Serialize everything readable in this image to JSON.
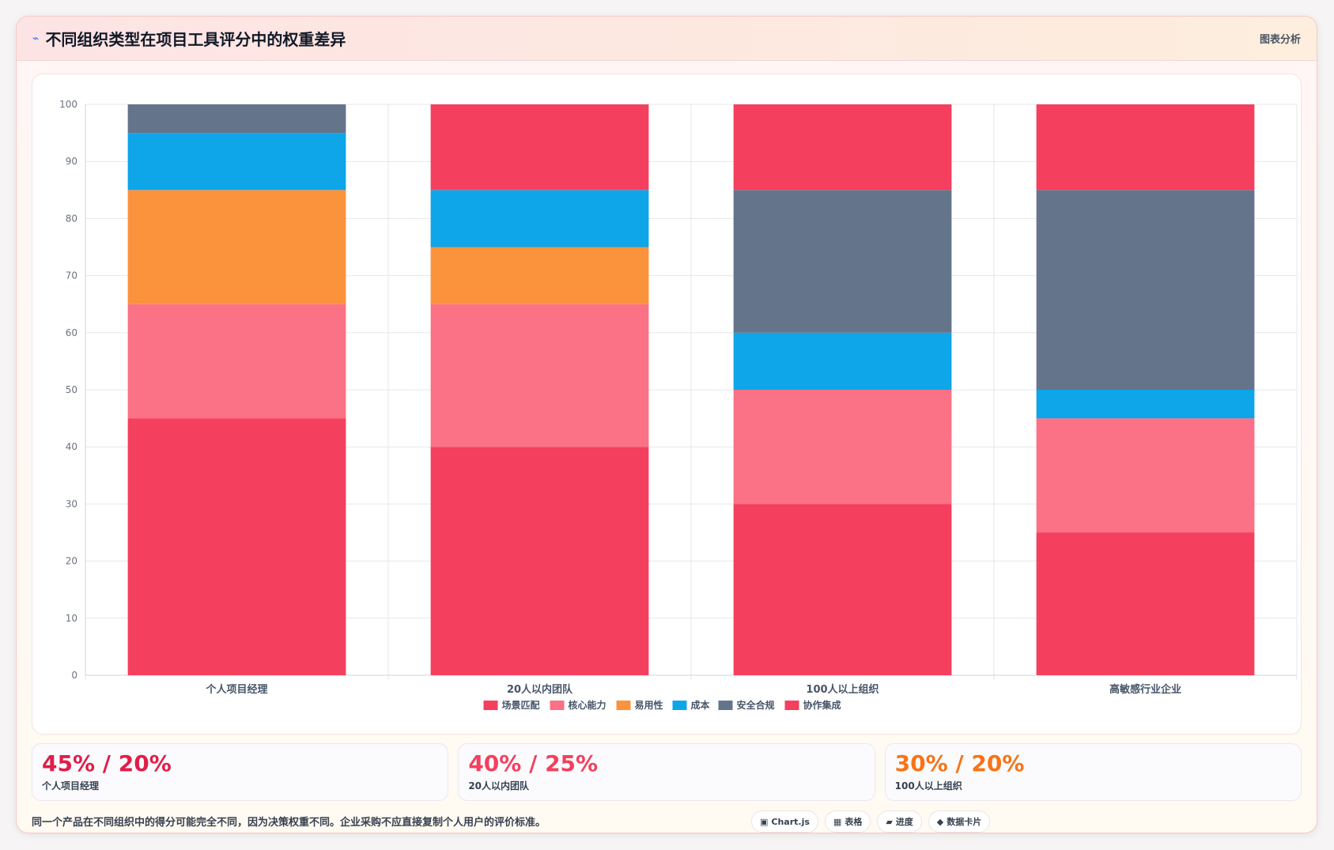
{
  "header": {
    "icon": "bolt-icon",
    "title": "不同组织类型在项目工具评分中的权重差异",
    "tag": "图表分析"
  },
  "chart_data": {
    "type": "bar",
    "stacked": true,
    "categories": [
      "个人项目经理",
      "20人以内团队",
      "100人以上组织",
      "高敏感行业企业"
    ],
    "ylim": [
      0,
      100
    ],
    "yticks": [
      0,
      10,
      20,
      30,
      40,
      50,
      60,
      70,
      80,
      90,
      100
    ],
    "legend_position": "bottom",
    "grid": true,
    "series": [
      {
        "name": "场景匹配",
        "color": "#f43f5e",
        "values": [
          45,
          40,
          30,
          25
        ]
      },
      {
        "name": "核心能力",
        "color": "#fb7185",
        "values": [
          20,
          25,
          20,
          20
        ]
      },
      {
        "name": "易用性",
        "color": "#fb923c",
        "values": [
          20,
          10,
          0,
          0
        ]
      },
      {
        "name": "成本",
        "color": "#0ea5e9",
        "values": [
          10,
          10,
          10,
          5
        ]
      },
      {
        "name": "安全合规",
        "color": "#64748b",
        "values": [
          5,
          0,
          25,
          35
        ]
      },
      {
        "name": "协作集成",
        "color": "#f43f5e",
        "values": [
          0,
          15,
          15,
          15
        ]
      }
    ]
  },
  "cards": [
    {
      "value": "45% / 20%",
      "label": "个人项目经理",
      "color": "#e11d48"
    },
    {
      "value": "40% / 25%",
      "label": "20人以内团队",
      "color": "#f43f5e"
    },
    {
      "value": "30% / 20%",
      "label": "100人以上组织",
      "color": "#f97316"
    }
  ],
  "footer": {
    "note": "同一个产品在不同组织中的得分可能完全不同，因为决策权重不同。企业采购不应直接复制个人用户的评价标准。",
    "pills": [
      {
        "icon": "▣",
        "icon_name": "chart-icon",
        "label": "Chart.js"
      },
      {
        "icon": "▦",
        "icon_name": "table-icon",
        "label": "表格"
      },
      {
        "icon": "▰",
        "icon_name": "progress-icon",
        "label": "进度"
      },
      {
        "icon": "◆",
        "icon_name": "diamond-icon",
        "label": "数据卡片"
      }
    ]
  }
}
